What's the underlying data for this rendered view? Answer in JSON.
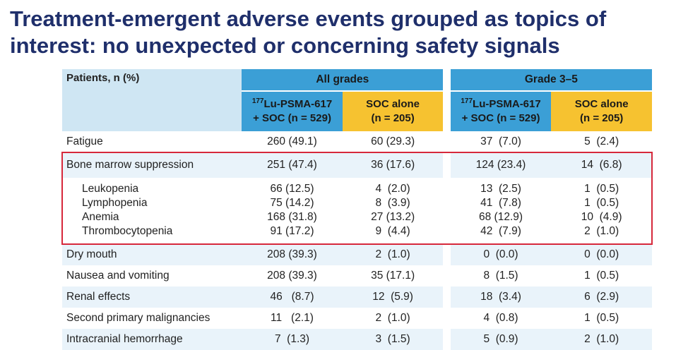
{
  "title": "Treatment-emergent adverse events grouped as topics of interest: no unexpected or concerning safety signals",
  "table": {
    "row_header": "Patients, n (%)",
    "groups": [
      "All grades",
      "Grade 3–5"
    ],
    "arms": [
      {
        "sup": "177",
        "line1": "Lu-PSMA-617",
        "line2": "+ SOC (n = 529)"
      },
      {
        "line1": "SOC alone",
        "line2": "(n = 205)"
      },
      {
        "sup": "177",
        "line1": "Lu-PSMA-617",
        "line2": "+ SOC (n = 529)"
      },
      {
        "line1": "SOC alone",
        "line2": "(n = 205)"
      }
    ],
    "rows": [
      {
        "label": "Fatigue",
        "values": [
          "260 (49.1)",
          "60 (29.3)",
          "37  (7.0)",
          "5  (2.4)"
        ]
      },
      {
        "label": "Bone marrow suppression",
        "values": [
          "251 (47.4)",
          "36 (17.6)",
          "124 (23.4)",
          "14  (6.8)"
        ]
      },
      {
        "label": "Leukopenia",
        "values": [
          "66 (12.5)",
          "4  (2.0)",
          "13  (2.5)",
          "1  (0.5)"
        ]
      },
      {
        "label": "Lymphopenia",
        "values": [
          "75 (14.2)",
          "8  (3.9)",
          "41  (7.8)",
          "1  (0.5)"
        ]
      },
      {
        "label": "Anemia",
        "values": [
          "168 (31.8)",
          "27 (13.2)",
          "68 (12.9)",
          "10  (4.9)"
        ]
      },
      {
        "label": "Thrombocytopenia",
        "values": [
          "91 (17.2)",
          "9  (4.4)",
          "42  (7.9)",
          "2  (1.0)"
        ]
      },
      {
        "label": "Dry mouth",
        "values": [
          "208 (39.3)",
          "2  (1.0)",
          "0  (0.0)",
          "0  (0.0)"
        ]
      },
      {
        "label": "Nausea and vomiting",
        "values": [
          "208 (39.3)",
          "35 (17.1)",
          "8  (1.5)",
          "1  (0.5)"
        ]
      },
      {
        "label": "Renal effects",
        "values": [
          "46   (8.7)",
          "12  (5.9)",
          "18  (3.4)",
          "6  (2.9)"
        ]
      },
      {
        "label": "Second primary malignancies",
        "values": [
          "11   (2.1)",
          "2  (1.0)",
          "4  (0.8)",
          "1  (0.5)"
        ]
      },
      {
        "label": "Intracranial hemorrhage",
        "values": [
          "7  (1.3)",
          "3  (1.5)",
          "5  (0.9)",
          "2  (1.0)"
        ]
      }
    ]
  },
  "colors": {
    "title": "#1f2f6b",
    "lu_arm": "#3b9fd6",
    "soc_arm": "#f6c230",
    "highlight_box": "#d6283b"
  }
}
